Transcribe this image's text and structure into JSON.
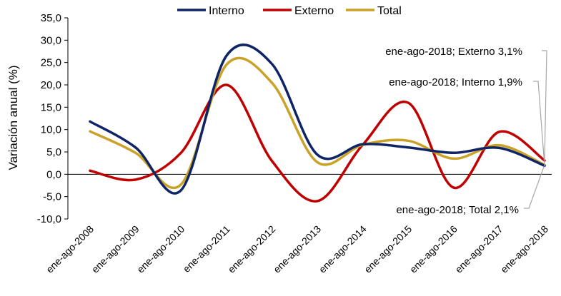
{
  "chart_data": {
    "type": "line",
    "title": "",
    "xlabel": "",
    "ylabel": "Variación anual (%)",
    "ylim": [
      -10,
      35
    ],
    "yticks": [
      "-10,0",
      "-5,0",
      "0,0",
      "5,0",
      "10,0",
      "15,0",
      "20,0",
      "25,0",
      "30,0",
      "35,0"
    ],
    "categories": [
      "ene-ago-2008",
      "ene-ago-2009",
      "ene-ago-2010",
      "ene-ago-2011",
      "ene-ago-2012",
      "ene-ago-2013",
      "ene-ago-2014",
      "ene-ago-2015",
      "ene-ago-2016",
      "ene-ago-2017",
      "ene-ago-2018"
    ],
    "series": [
      {
        "name": "Interno",
        "color": "#0f2466",
        "values": [
          11.8,
          6.0,
          -3.6,
          26.5,
          24.7,
          4.4,
          6.7,
          6.0,
          4.8,
          5.9,
          1.9
        ]
      },
      {
        "name": "Externo",
        "color": "#c00000",
        "values": [
          0.8,
          -1.2,
          4.8,
          20.0,
          3.0,
          -6.0,
          6.6,
          16.0,
          -3.0,
          9.5,
          3.1
        ]
      },
      {
        "name": "Total",
        "color": "#c9a227",
        "values": [
          9.6,
          4.8,
          -2.3,
          24.5,
          20.5,
          2.7,
          6.6,
          7.5,
          3.5,
          6.5,
          2.1
        ]
      }
    ],
    "annotations": [
      {
        "text": "ene-ago-2018; Externo 3,1%",
        "series": "Externo"
      },
      {
        "text": "ene-ago-2018; Interno 1,9%",
        "series": "Interno"
      },
      {
        "text": "ene-ago-2018; Total 2,1%",
        "series": "Total"
      }
    ],
    "legend_position": "top",
    "grid": false
  }
}
